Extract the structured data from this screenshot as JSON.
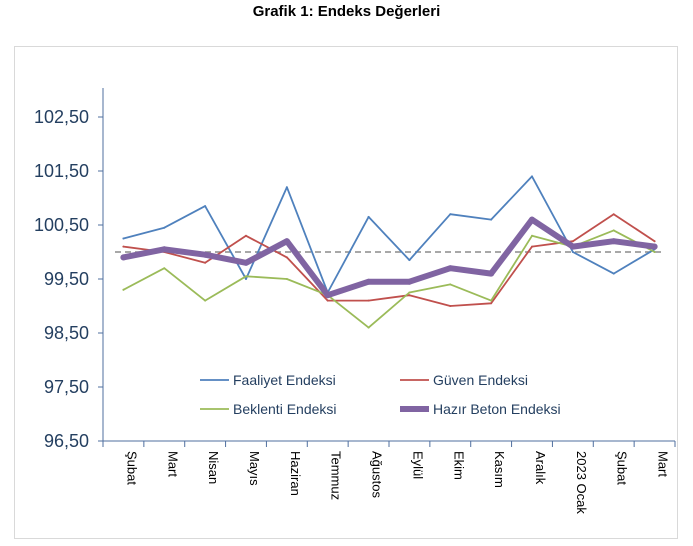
{
  "chart_data": {
    "type": "line",
    "title": "Grafik 1: Endeks Değerleri",
    "categories": [
      "Şubat",
      "Mart",
      "Nisan",
      "Mayıs",
      "Haziran",
      "Temmuz",
      "Ağustos",
      "Eylül",
      "Ekim",
      "Kasım",
      "Aralık",
      "2023 Ocak",
      "Şubat",
      "Mart"
    ],
    "ylim": [
      96.5,
      103.5
    ],
    "yticks": [
      96.5,
      97.5,
      98.5,
      99.5,
      100.5,
      101.5,
      102.5
    ],
    "ytick_labels": [
      "96,50",
      "97,50",
      "98,50",
      "99,50",
      "100,50",
      "101,50",
      "102,50"
    ],
    "reference_line": 100,
    "series": [
      {
        "name": "Faaliyet Endeksi",
        "color": "#4f81bd",
        "width": 1.8,
        "values": [
          100.25,
          100.45,
          100.85,
          99.5,
          101.2,
          99.25,
          100.65,
          99.85,
          100.7,
          100.6,
          101.4,
          100.0,
          99.6,
          100.05
        ]
      },
      {
        "name": "Güven Endeksi",
        "color": "#c0504d",
        "width": 1.8,
        "values": [
          100.1,
          100.0,
          99.8,
          100.3,
          99.9,
          99.1,
          99.1,
          99.2,
          99.0,
          99.05,
          100.1,
          100.2,
          100.7,
          100.2
        ]
      },
      {
        "name": "Beklenti Endeksi",
        "color": "#9bbb59",
        "width": 1.8,
        "values": [
          99.3,
          99.7,
          99.1,
          99.55,
          99.5,
          99.2,
          98.6,
          99.25,
          99.4,
          99.1,
          100.3,
          100.1,
          100.4,
          100.0
        ]
      },
      {
        "name": "Hazır Beton Endeksi",
        "color": "#8064a2",
        "width": 6,
        "values": [
          99.9,
          100.05,
          99.95,
          99.8,
          100.2,
          99.2,
          99.45,
          99.45,
          99.7,
          99.6,
          100.6,
          100.1,
          100.2,
          100.1
        ]
      }
    ]
  }
}
